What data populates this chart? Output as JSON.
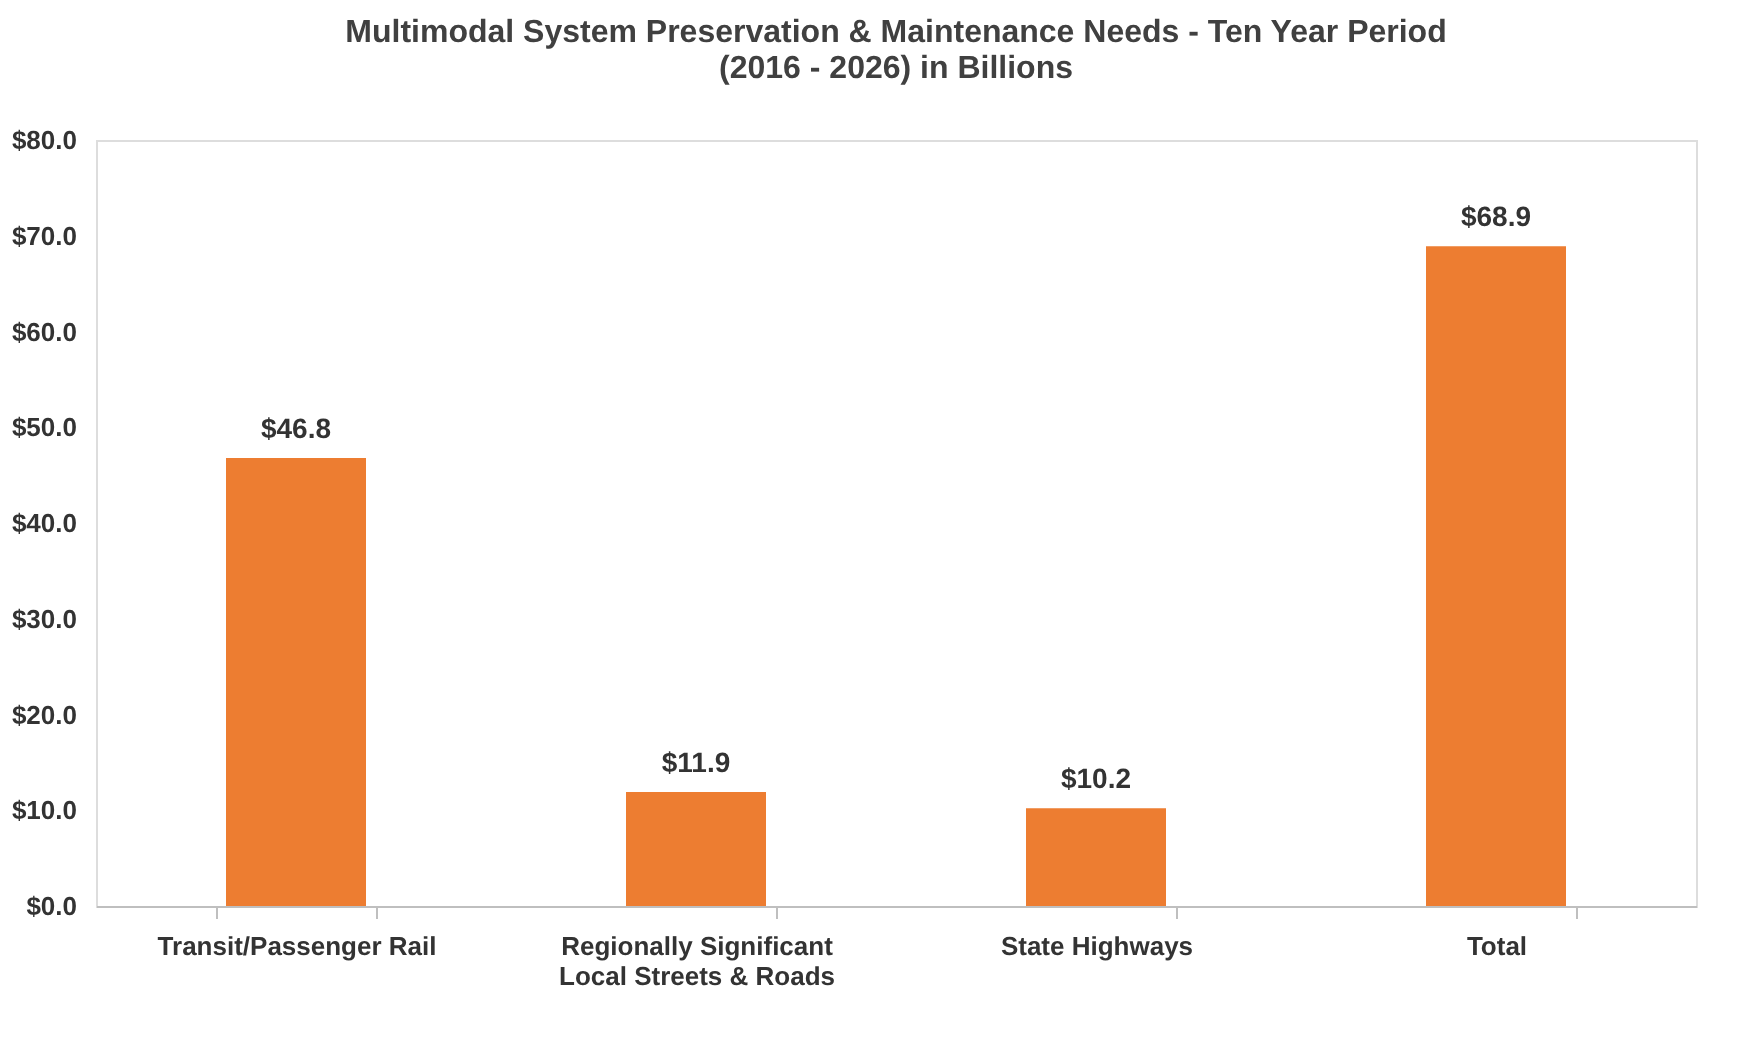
{
  "chart_data": {
    "type": "bar",
    "title": "Multimodal System Preservation & Maintenance Needs - Ten Year Period\n(2016 - 2026) in Billions",
    "categories": [
      "Transit/Passenger Rail",
      "Regionally Significant\nLocal Streets & Roads",
      "State Highways",
      "Total"
    ],
    "values": [
      46.8,
      11.9,
      10.2,
      68.9
    ],
    "value_labels": [
      "$46.8",
      "$11.9",
      "$10.2",
      "$68.9"
    ],
    "color": "#ed7d31",
    "ylim": [
      0,
      80
    ],
    "yticks": [
      {
        "value": 0,
        "label": "$0.0"
      },
      {
        "value": 10,
        "label": "$10.0"
      },
      {
        "value": 20,
        "label": "$20.0"
      },
      {
        "value": 30,
        "label": "$30.0"
      },
      {
        "value": 40,
        "label": "$40.0"
      },
      {
        "value": 50,
        "label": "$50.0"
      },
      {
        "value": 60,
        "label": "$60.0"
      },
      {
        "value": 70,
        "label": "$70.0"
      },
      {
        "value": 80,
        "label": "$80.0"
      }
    ],
    "grid": false
  }
}
